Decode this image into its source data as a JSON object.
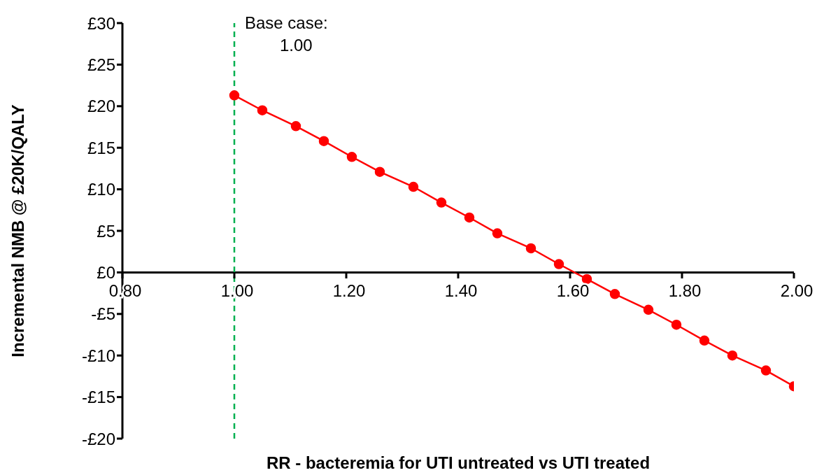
{
  "chart_data": {
    "type": "line",
    "xlabel": "RR - bacteremia for UTI untreated vs UTI treated",
    "ylabel": "Incremental NMB @ £20K/QALY",
    "x": [
      1.0,
      1.05,
      1.11,
      1.16,
      1.21,
      1.26,
      1.32,
      1.37,
      1.42,
      1.47,
      1.53,
      1.58,
      1.63,
      1.68,
      1.74,
      1.79,
      1.84,
      1.89,
      1.95,
      2.0
    ],
    "series": [
      {
        "color": "#ff0000",
        "values": [
          21.3,
          19.5,
          17.6,
          15.8,
          13.9,
          12.1,
          10.3,
          8.4,
          6.6,
          4.7,
          2.9,
          1.0,
          -0.8,
          -2.6,
          -4.5,
          -6.3,
          -8.2,
          -10.0,
          -11.8,
          -13.7
        ]
      }
    ],
    "xlim": [
      0.8,
      2.0
    ],
    "xticks": [
      {
        "value": 0.8,
        "label": "0.80"
      },
      {
        "value": 1.0,
        "label": "1.00"
      },
      {
        "value": 1.2,
        "label": "1.20"
      },
      {
        "value": 1.4,
        "label": "1.40"
      },
      {
        "value": 1.6,
        "label": "1.60"
      },
      {
        "value": 1.8,
        "label": "1.80"
      },
      {
        "value": 2.0,
        "label": "2.00"
      }
    ],
    "ylim": [
      -20,
      30
    ],
    "yticks": [
      {
        "value": -20,
        "label": "-£20"
      },
      {
        "value": -15,
        "label": "-£15"
      },
      {
        "value": -10,
        "label": "-£10"
      },
      {
        "value": -5,
        "label": "-£5"
      },
      {
        "value": 0,
        "label": "£0"
      },
      {
        "value": 5,
        "label": "£5"
      },
      {
        "value": 10,
        "label": "£10"
      },
      {
        "value": 15,
        "label": "£15"
      },
      {
        "value": 20,
        "label": "£20"
      },
      {
        "value": 25,
        "label": "£25"
      },
      {
        "value": 30,
        "label": "£30"
      }
    ],
    "ref_lines": [
      {
        "axis": "x",
        "value": 1.0,
        "label": "Base case:\n1.00",
        "color": "#00b050",
        "line_style": "dashed"
      }
    ],
    "grid": false,
    "legend": false,
    "marker": "circle",
    "line_style": "solid"
  }
}
